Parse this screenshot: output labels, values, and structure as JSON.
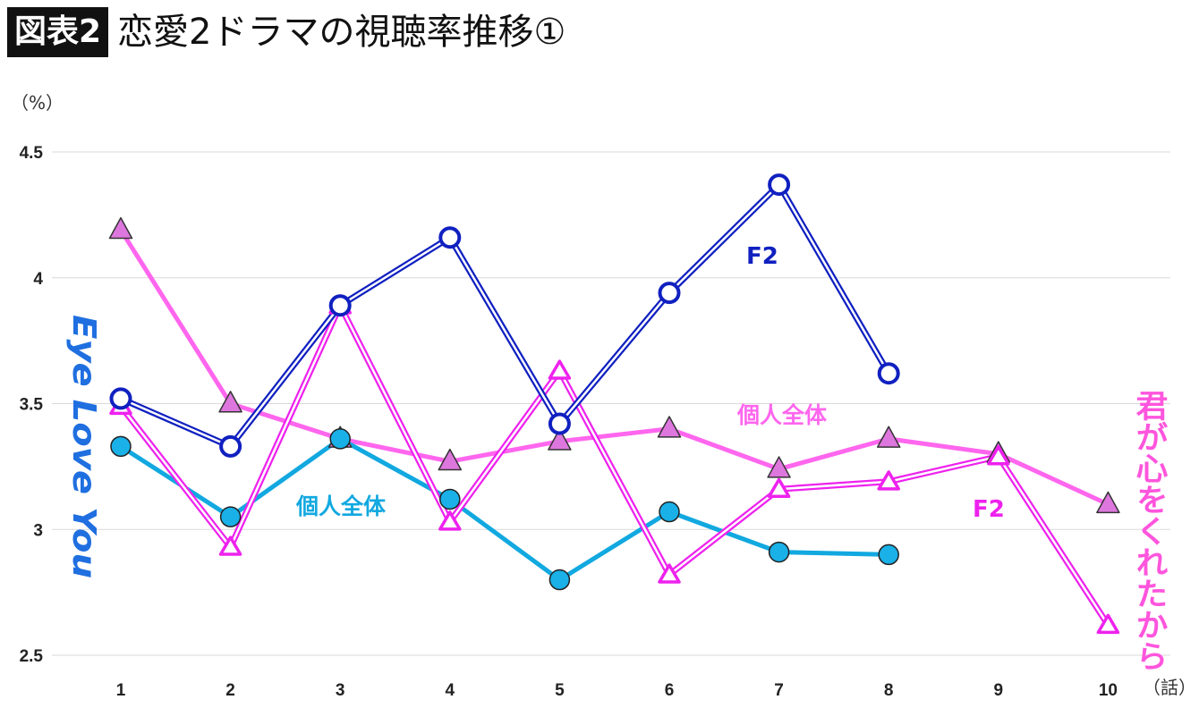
{
  "header": {
    "badge": "図表2",
    "title": "恋愛2ドラマの視聴率推移①"
  },
  "chart_data": {
    "type": "line",
    "y_unit": "（%）",
    "x_unit": "（話）",
    "x": [
      1,
      2,
      3,
      4,
      5,
      6,
      7,
      8,
      9,
      10
    ],
    "x_tick_labels": [
      "1",
      "2",
      "3",
      "4",
      "5",
      "6",
      "7",
      "8",
      "9",
      "10"
    ],
    "ylim": [
      2.5,
      4.5
    ],
    "y_ticks": [
      2.5,
      3,
      3.5,
      4,
      4.5
    ],
    "y_tick_labels": [
      "2.5",
      "3",
      "3.5",
      "4",
      "4.5"
    ],
    "grid": true,
    "dramas": [
      {
        "name": "Eye Love You",
        "color": "#1f6fe0"
      },
      {
        "name": "君が心をくれたから",
        "color": "#ff55dd"
      }
    ],
    "series": [
      {
        "drama": 0,
        "label": "F2",
        "color": "#1020c0",
        "marker": "open-circle",
        "values": [
          3.52,
          3.33,
          3.89,
          4.16,
          3.42,
          3.94,
          4.37,
          3.62,
          null,
          null
        ]
      },
      {
        "drama": 0,
        "label": "個人全体",
        "color": "#12a8e0",
        "marker": "filled-circle",
        "values": [
          3.33,
          3.05,
          3.36,
          3.12,
          2.8,
          3.07,
          2.91,
          2.9,
          null,
          null
        ]
      },
      {
        "drama": 1,
        "label": "F2",
        "color": "#ee22ee",
        "marker": "open-triangle",
        "values": [
          3.49,
          2.93,
          3.89,
          3.03,
          3.63,
          2.82,
          3.16,
          3.19,
          3.29,
          2.62
        ]
      },
      {
        "drama": 1,
        "label": "個人全体",
        "color": "#ff66ee",
        "marker": "filled-triangle",
        "values": [
          4.19,
          3.5,
          3.36,
          3.27,
          3.35,
          3.4,
          3.24,
          3.36,
          3.3,
          3.1
        ]
      }
    ]
  }
}
